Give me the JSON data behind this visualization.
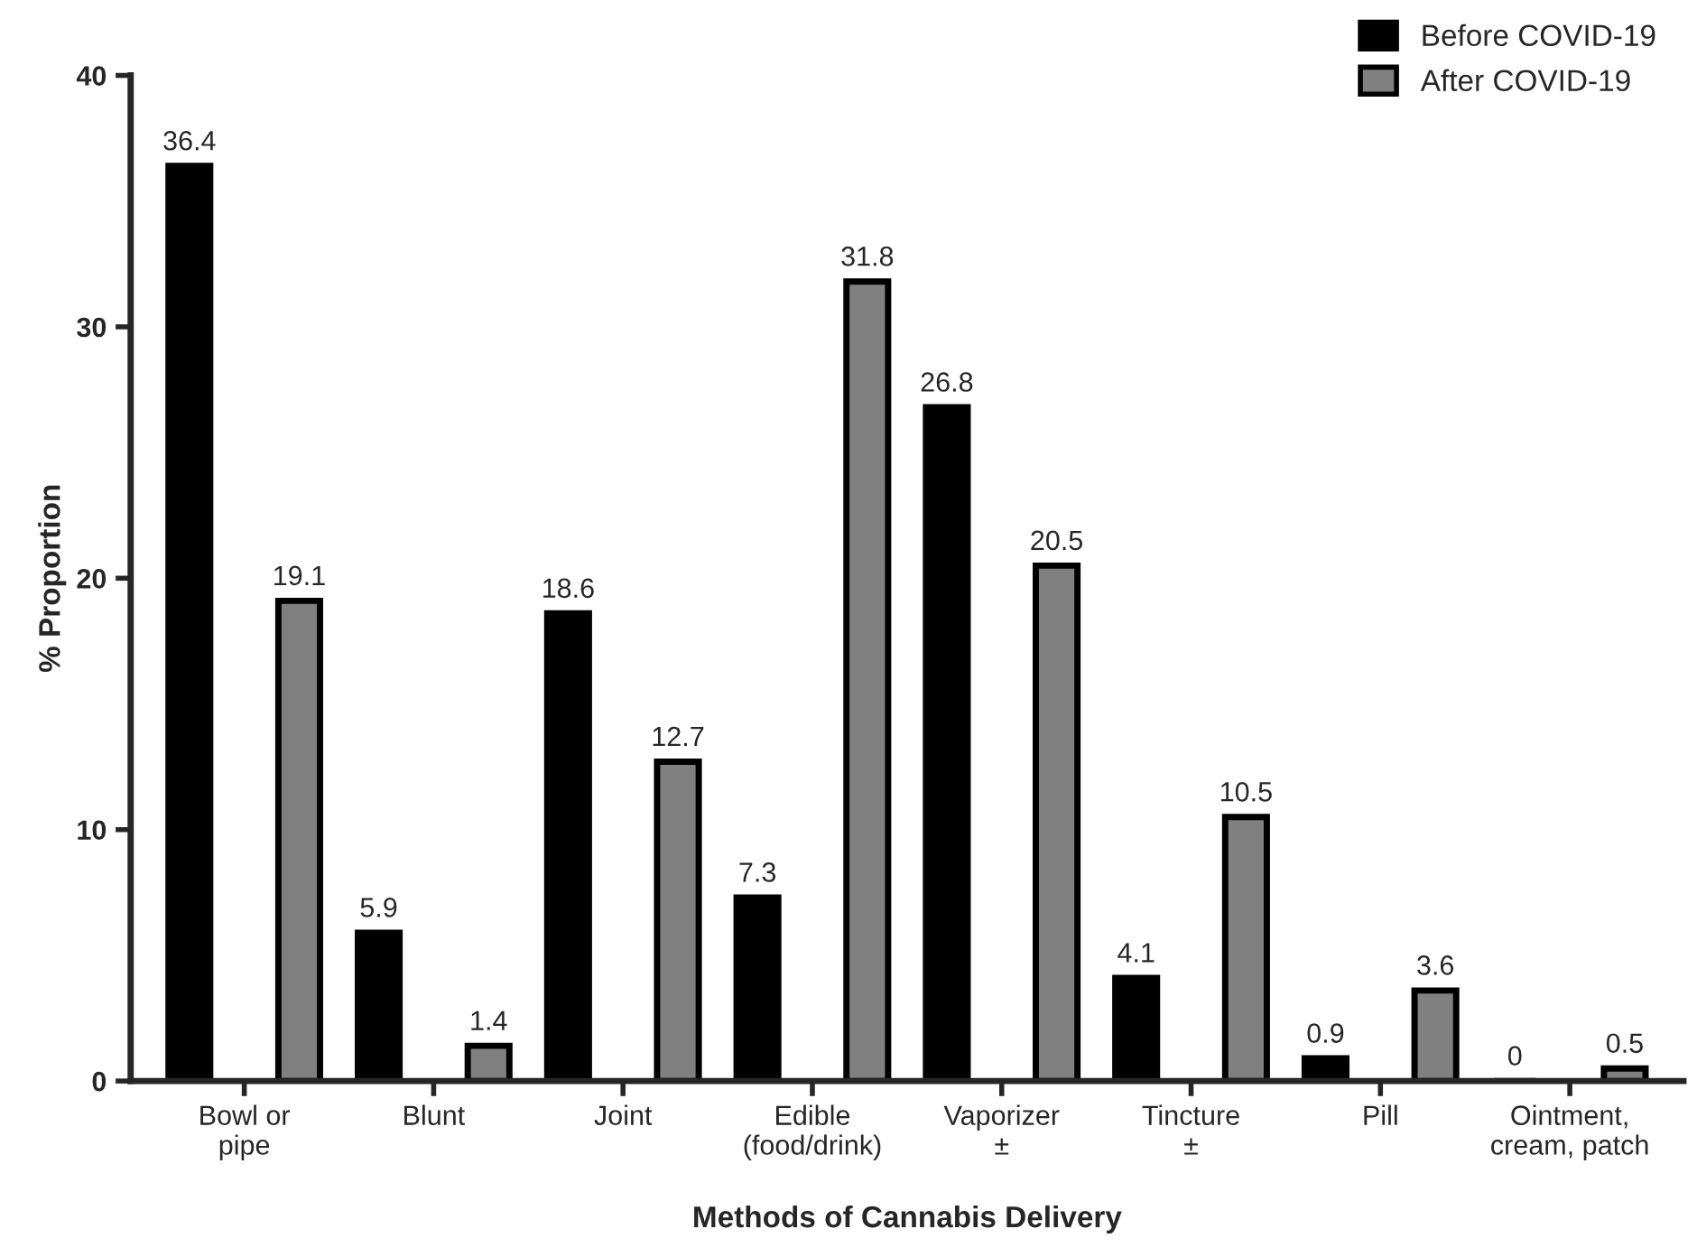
{
  "chart_data": {
    "type": "bar",
    "xlabel": "Methods of Cannabis Delivery",
    "ylabel": "% Proportion",
    "categories": [
      "Bowl or\npipe",
      "Blunt",
      "Joint",
      "Edible\n(food/drink)",
      "Vaporizer\n±",
      "Tincture\n±",
      "Pill",
      "Ointment,\ncream, patch"
    ],
    "series": [
      {
        "name": "Before COVID-19",
        "color": "#000000",
        "values": [
          36.4,
          5.9,
          18.6,
          7.3,
          26.8,
          4.1,
          0.9,
          0
        ]
      },
      {
        "name": "After COVID-19",
        "color": "#808080",
        "values": [
          19.1,
          1.4,
          12.7,
          31.8,
          20.5,
          10.5,
          3.6,
          0.5
        ]
      }
    ],
    "ylim": [
      0,
      40
    ],
    "yticks": [
      0,
      10,
      20,
      30,
      40
    ],
    "data_labels": true,
    "legend": "top right",
    "grid": false
  }
}
